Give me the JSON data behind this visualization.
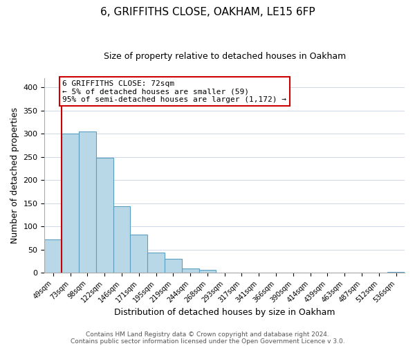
{
  "title": "6, GRIFFITHS CLOSE, OAKHAM, LE15 6FP",
  "subtitle": "Size of property relative to detached houses in Oakham",
  "xlabel": "Distribution of detached houses by size in Oakham",
  "ylabel": "Number of detached properties",
  "bar_labels": [
    "49sqm",
    "73sqm",
    "98sqm",
    "122sqm",
    "146sqm",
    "171sqm",
    "195sqm",
    "219sqm",
    "244sqm",
    "268sqm",
    "293sqm",
    "317sqm",
    "341sqm",
    "366sqm",
    "390sqm",
    "414sqm",
    "439sqm",
    "463sqm",
    "487sqm",
    "512sqm",
    "536sqm"
  ],
  "bar_heights": [
    72,
    300,
    305,
    248,
    143,
    82,
    43,
    31,
    9,
    6,
    0,
    0,
    0,
    0,
    0,
    1,
    0,
    0,
    0,
    0,
    2
  ],
  "bar_color": "#b8d8e8",
  "bar_edge_color": "#5a9fc0",
  "marker_color": "#cc0000",
  "ylim": [
    0,
    420
  ],
  "yticks": [
    0,
    50,
    100,
    150,
    200,
    250,
    300,
    350,
    400
  ],
  "annotation_title": "6 GRIFFITHS CLOSE: 72sqm",
  "annotation_line1": "← 5% of detached houses are smaller (59)",
  "annotation_line2": "95% of semi-detached houses are larger (1,172) →",
  "footer_line1": "Contains HM Land Registry data © Crown copyright and database right 2024.",
  "footer_line2": "Contains public sector information licensed under the Open Government Licence v 3.0.",
  "background_color": "#ffffff",
  "plot_background": "#ffffff",
  "grid_color": "#d0d8e8"
}
